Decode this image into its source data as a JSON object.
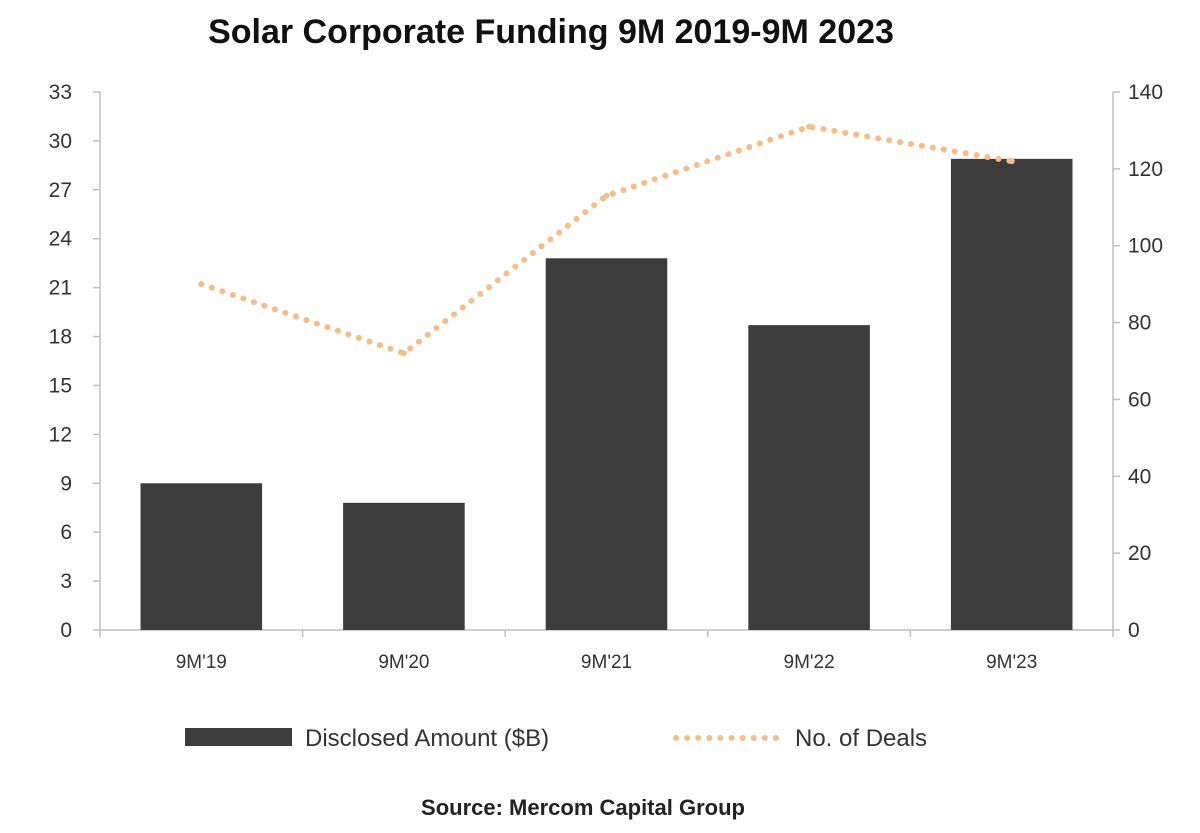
{
  "chart_data": {
    "type": "bar",
    "title": "Solar Corporate Funding 9M 2019-9M 2023",
    "categories": [
      "9M'19",
      "9M'20",
      "9M'21",
      "9M'22",
      "9M'23"
    ],
    "series": [
      {
        "name": "Disclosed Amount ($B)",
        "type": "bar",
        "axis": "left",
        "color": "#3c3c3c",
        "values": [
          9.0,
          7.8,
          22.8,
          18.7,
          28.9
        ]
      },
      {
        "name": "No. of Deals",
        "type": "line",
        "style": "dotted",
        "axis": "right",
        "color": "#f2bf8c",
        "values": [
          90,
          72,
          113,
          131,
          122
        ]
      }
    ],
    "y_left": {
      "ylim": [
        0,
        33
      ],
      "ticks": [
        "0",
        "3",
        "6",
        "9",
        "12",
        "15",
        "18",
        "21",
        "24",
        "27",
        "30",
        "33"
      ]
    },
    "y_right": {
      "ylim": [
        0,
        140
      ],
      "ticks": [
        "0",
        "20",
        "40",
        "60",
        "80",
        "100",
        "120",
        "140"
      ]
    },
    "grid": false,
    "legend_position": "bottom",
    "source": "Source: Mercom Capital Group"
  }
}
